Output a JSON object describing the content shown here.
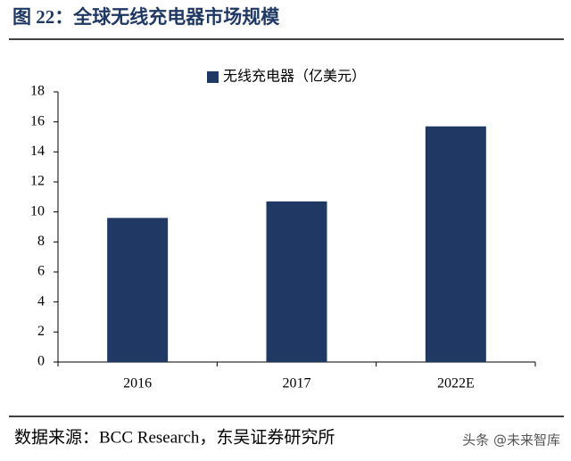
{
  "chart_data": {
    "type": "bar",
    "title": "图 22：全球无线充电器市场规模",
    "categories": [
      "2016",
      "2017",
      "2022E"
    ],
    "series": [
      {
        "name": "无线充电器（亿美元）",
        "color": "#1f3864",
        "values": [
          9.6,
          10.7,
          15.7
        ]
      }
    ],
    "ylim": [
      0,
      18
    ],
    "yticks": [
      0,
      2,
      4,
      6,
      8,
      10,
      12,
      14,
      16,
      18
    ],
    "grid": false,
    "legend": "top",
    "source": "数据来源：BCC Research，东吴证券研究所",
    "watermark": "头条 @未来智库"
  }
}
